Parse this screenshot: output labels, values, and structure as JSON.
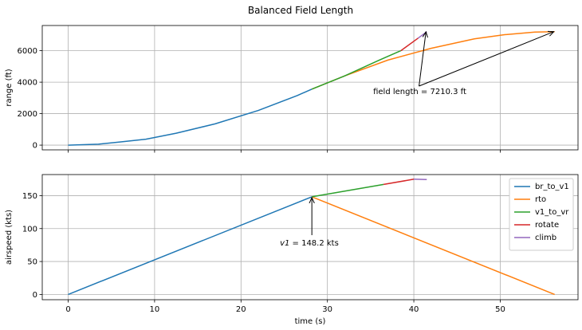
{
  "figure_title": "Balanced Field Length",
  "chart_data": [
    {
      "type": "line",
      "id": "range",
      "ylabel": "range (ft)",
      "xlim": [
        -3,
        59
      ],
      "ylim": [
        -300,
        7600
      ],
      "xticks": [
        0,
        10,
        20,
        30,
        40,
        50
      ],
      "yticks": [
        0,
        2000,
        4000,
        6000
      ],
      "yticklabels": [
        "0",
        "2000",
        "4000",
        "6000"
      ],
      "grid": true,
      "series": [
        {
          "name": "br_to_v1",
          "color": "#1f77b4",
          "x": [
            0,
            3.5,
            6,
            9,
            12.5,
            17,
            22,
            26.5,
            28.2
          ],
          "y": [
            0,
            60,
            200,
            380,
            760,
            1350,
            2200,
            3150,
            3560
          ]
        },
        {
          "name": "rto",
          "color": "#ff7f0e",
          "x": [
            28.2,
            32,
            37,
            42,
            47,
            50.5,
            54,
            56.3
          ],
          "y": [
            3560,
            4400,
            5400,
            6150,
            6750,
            7020,
            7180,
            7210
          ]
        },
        {
          "name": "v1_to_vr",
          "color": "#2ca02c",
          "x": [
            28.2,
            32,
            36,
            38.5
          ],
          "y": [
            3560,
            4400,
            5400,
            6000
          ]
        },
        {
          "name": "rotate",
          "color": "#d62728",
          "x": [
            38.5,
            40.5
          ],
          "y": [
            6000,
            6800
          ]
        },
        {
          "name": "climb",
          "color": "#9467bd",
          "x": [
            40.5,
            41.5
          ],
          "y": [
            6800,
            7200
          ]
        }
      ],
      "annotations": [
        {
          "text": "field length = 7210.3 ft",
          "text_x": 35.3,
          "text_y": 3250,
          "arrows": [
            {
              "from": [
                40.6,
                3750
              ],
              "to": [
                41.4,
                7200
              ]
            },
            {
              "from": [
                40.6,
                3750
              ],
              "to": [
                56.2,
                7210
              ]
            }
          ]
        }
      ]
    },
    {
      "type": "line",
      "id": "airspeed",
      "ylabel": "airspeed (kts)",
      "xlabel": "time (s)",
      "xlim": [
        -3,
        59
      ],
      "ylim": [
        -8,
        182
      ],
      "xticks": [
        0,
        10,
        20,
        30,
        40,
        50
      ],
      "yticks": [
        0,
        50,
        100,
        150
      ],
      "yticklabels": [
        "0",
        "50",
        "100",
        "150"
      ],
      "grid": true,
      "legend": "top-right",
      "series": [
        {
          "name": "br_to_v1",
          "color": "#1f77b4",
          "x": [
            0,
            28.2
          ],
          "y": [
            0,
            148.2
          ]
        },
        {
          "name": "rto",
          "color": "#ff7f0e",
          "x": [
            28.2,
            56.3
          ],
          "y": [
            148.2,
            0
          ]
        },
        {
          "name": "v1_to_vr",
          "color": "#2ca02c",
          "x": [
            28.2,
            36.5
          ],
          "y": [
            148.2,
            167
          ]
        },
        {
          "name": "rotate",
          "color": "#d62728",
          "x": [
            36.5,
            40
          ],
          "y": [
            167,
            175
          ]
        },
        {
          "name": "climb",
          "color": "#9467bd",
          "x": [
            40,
            41.5
          ],
          "y": [
            175,
            174.5
          ]
        }
      ],
      "annotations": [
        {
          "text_prefix": "v1",
          "text_suffix": " = 148.2 kts",
          "text_x": 24.5,
          "text_y": 74,
          "arrows": [
            {
              "from": [
                28.2,
                90
              ],
              "to": [
                28.2,
                147
              ]
            }
          ]
        }
      ]
    }
  ]
}
